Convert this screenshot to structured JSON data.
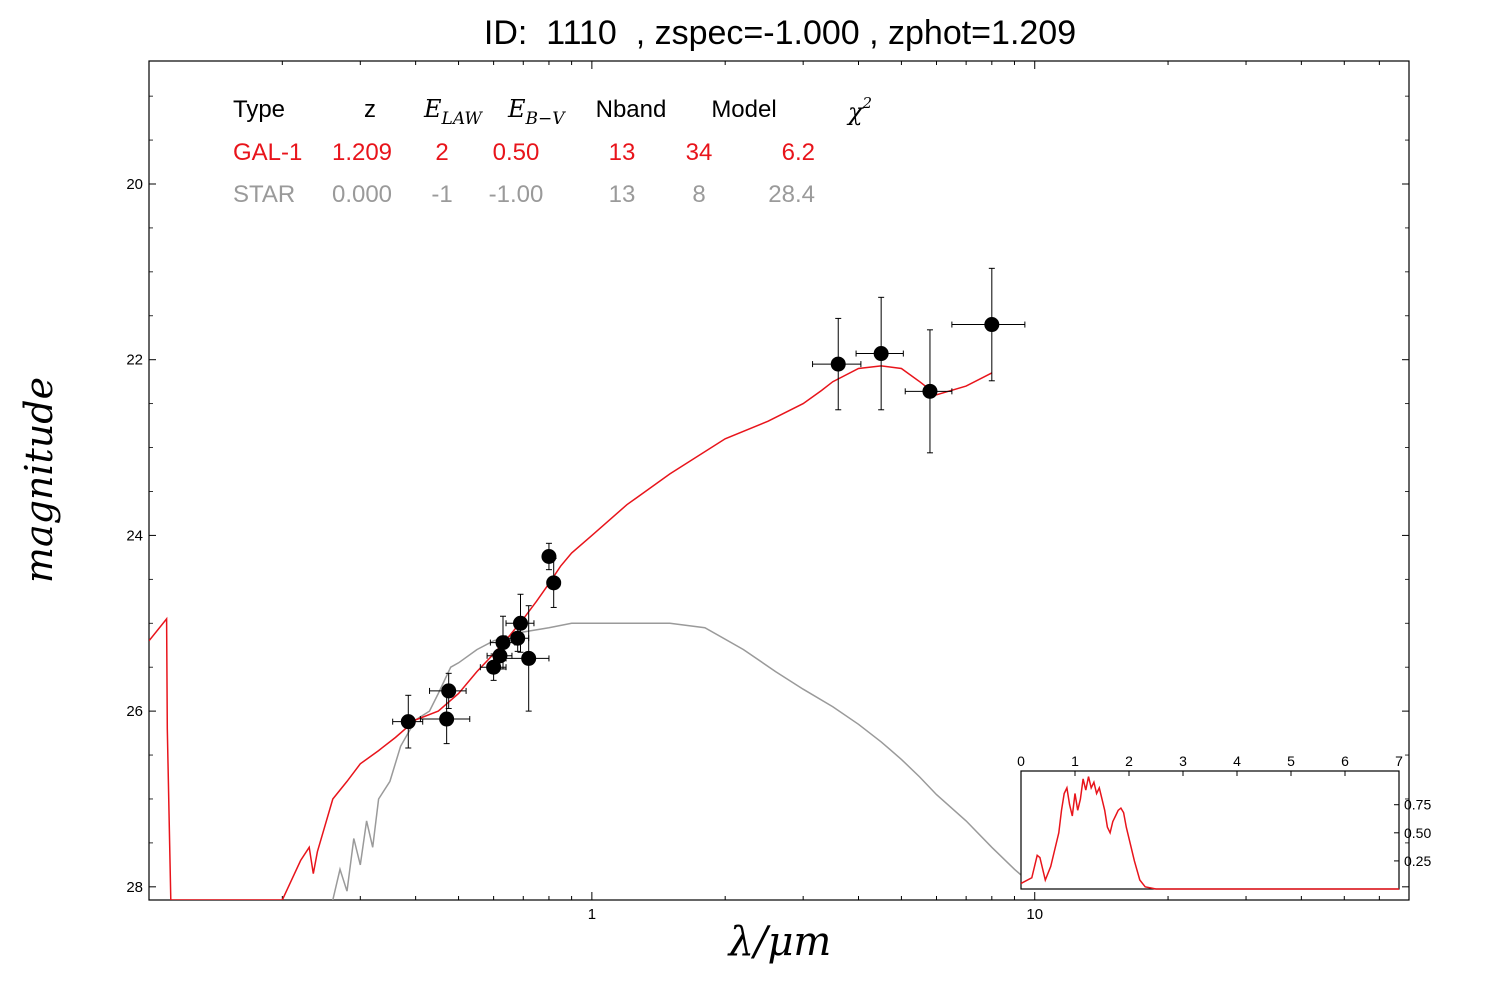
{
  "title": "ID:  1110  , zspec=-1.000 , zphot=1.209",
  "colors": {
    "galaxy": "#e8141b",
    "star": "#9a9a9a",
    "points": "#000000"
  },
  "legend": {
    "headers": {
      "type": "Type",
      "z": "z",
      "ebv_label": "E",
      "ebv_sub": "B−V",
      "elaw_label": "E",
      "elaw_sub": "LAW",
      "nband": "Nband",
      "model": "Model",
      "chi": "χ",
      "chi_sup": "2"
    },
    "rows": [
      {
        "type": "GAL-1",
        "z": "1.209",
        "elaw": "2",
        "ebv": "0.50",
        "nband": "13",
        "model": "34",
        "chi2": "6.2",
        "color": "#e8141b"
      },
      {
        "type": "STAR",
        "z": "0.000",
        "elaw": "-1",
        "ebv": "-1.00",
        "nband": "13",
        "model": "8",
        "chi2": "28.4",
        "color": "#9a9a9a"
      }
    ]
  },
  "chart_data": [
    {
      "type": "scatter",
      "xlabel": "λ/μm",
      "ylabel": "magnitude",
      "x_scale": "log",
      "xlim": [
        0.1,
        70
      ],
      "ylim": [
        28.15,
        18.6
      ],
      "y_inverted": true,
      "x_tick_labels": [
        "1",
        "10"
      ],
      "y_ticks": [
        20,
        22,
        24,
        26,
        28
      ],
      "photometry": [
        {
          "x": 0.385,
          "y": 26.12,
          "xerr": 0.03,
          "yerr": 0.3
        },
        {
          "x": 0.475,
          "y": 25.77,
          "xerr": 0.045,
          "yerr": 0.2
        },
        {
          "x": 0.47,
          "y": 26.09,
          "xerr": 0.06,
          "yerr": 0.28
        },
        {
          "x": 0.6,
          "y": 25.5,
          "xerr": 0.04,
          "yerr": 0.15
        },
        {
          "x": 0.62,
          "y": 25.37,
          "xerr": 0.04,
          "yerr": 0.15
        },
        {
          "x": 0.63,
          "y": 25.22,
          "xerr": 0.04,
          "yerr": 0.3
        },
        {
          "x": 0.68,
          "y": 25.17,
          "xerr": 0.04,
          "yerr": 0.15
        },
        {
          "x": 0.69,
          "y": 25.0,
          "xerr": 0.05,
          "yerr": 0.33
        },
        {
          "x": 0.72,
          "y": 25.4,
          "xerr": 0.08,
          "yerr": 0.6
        },
        {
          "x": 0.8,
          "y": 24.24,
          "xerr": 0.02,
          "yerr": 0.15
        },
        {
          "x": 0.82,
          "y": 24.54,
          "xerr": 0.02,
          "yerr": 0.28
        },
        {
          "x": 3.6,
          "y": 22.05,
          "xerr": 0.45,
          "yerr": 0.52
        },
        {
          "x": 4.5,
          "y": 21.93,
          "xerr": 0.55,
          "yerr": 0.64
        },
        {
          "x": 5.8,
          "y": 22.36,
          "xerr": 0.7,
          "yerr": 0.7
        },
        {
          "x": 8.0,
          "y": 21.6,
          "xerr": 1.5,
          "yerr": 0.64
        }
      ],
      "series": [
        {
          "name": "GAL-1",
          "x": [
            0.1,
            0.1096,
            0.11,
            0.112,
            0.2,
            0.22,
            0.23,
            0.235,
            0.24,
            0.26,
            0.28,
            0.3,
            0.33,
            0.36,
            0.4,
            0.45,
            0.5,
            0.55,
            0.6,
            0.65,
            0.7,
            0.75,
            0.8,
            0.85,
            0.9,
            1.0,
            1.2,
            1.5,
            2.0,
            2.5,
            3.0,
            3.3,
            3.5,
            4.0,
            4.5,
            5.0,
            5.5,
            6.0,
            7.0,
            8.0
          ],
          "y": [
            25.2,
            24.95,
            26.2,
            28.15,
            28.15,
            27.7,
            27.55,
            27.85,
            27.6,
            27.0,
            26.8,
            26.6,
            26.45,
            26.3,
            26.1,
            26.0,
            25.8,
            25.55,
            25.35,
            25.15,
            24.95,
            24.75,
            24.55,
            24.35,
            24.2,
            24.0,
            23.65,
            23.3,
            22.9,
            22.7,
            22.5,
            22.35,
            22.25,
            22.1,
            22.07,
            22.1,
            22.25,
            22.4,
            22.3,
            22.15
          ]
        },
        {
          "name": "STAR",
          "x": [
            0.26,
            0.27,
            0.28,
            0.29,
            0.3,
            0.31,
            0.32,
            0.33,
            0.35,
            0.37,
            0.4,
            0.43,
            0.45,
            0.48,
            0.5,
            0.55,
            0.6,
            0.65,
            0.7,
            0.8,
            0.9,
            1.0,
            1.2,
            1.5,
            1.8,
            2.2,
            2.6,
            3.0,
            3.5,
            4.0,
            4.5,
            5.0,
            5.5,
            6.0,
            7.0,
            8.0,
            9.0,
            10.0
          ],
          "y": [
            28.15,
            27.8,
            28.05,
            27.45,
            27.75,
            27.25,
            27.55,
            27.0,
            26.8,
            26.4,
            26.1,
            26.0,
            25.8,
            25.5,
            25.45,
            25.3,
            25.2,
            25.15,
            25.1,
            25.05,
            25.0,
            25.0,
            25.0,
            25.0,
            25.05,
            25.3,
            25.55,
            25.75,
            25.95,
            26.15,
            26.35,
            26.55,
            26.75,
            26.95,
            27.25,
            27.55,
            27.8,
            28.0
          ]
        }
      ]
    },
    {
      "type": "line",
      "name": "inset",
      "xlim": [
        0,
        7
      ],
      "ylim": [
        0,
        1.05
      ],
      "x_tick_labels": [
        "0",
        "1",
        "2",
        "3",
        "4",
        "5",
        "6",
        "7"
      ],
      "y_tick_labels": [
        "0.25",
        "0.50",
        "0.75"
      ],
      "series": [
        {
          "x": [
            0,
            0.2,
            0.3,
            0.35,
            0.45,
            0.55,
            0.7,
            0.75,
            0.8,
            0.85,
            0.9,
            0.95,
            1.0,
            1.05,
            1.1,
            1.15,
            1.2,
            1.25,
            1.3,
            1.35,
            1.4,
            1.45,
            1.5,
            1.55,
            1.6,
            1.65,
            1.7,
            1.75,
            1.8,
            1.85,
            1.9,
            1.95,
            2.0,
            2.1,
            2.2,
            2.3,
            2.5,
            3.0,
            7.0
          ],
          "y": [
            0.05,
            0.1,
            0.3,
            0.28,
            0.08,
            0.2,
            0.5,
            0.7,
            0.85,
            0.9,
            0.75,
            0.65,
            0.85,
            0.7,
            0.8,
            0.98,
            0.88,
            1.0,
            0.9,
            0.95,
            0.85,
            0.9,
            0.8,
            0.7,
            0.55,
            0.5,
            0.6,
            0.65,
            0.7,
            0.72,
            0.68,
            0.55,
            0.45,
            0.25,
            0.08,
            0.02,
            0.0,
            0.0,
            0.0
          ]
        }
      ]
    }
  ]
}
